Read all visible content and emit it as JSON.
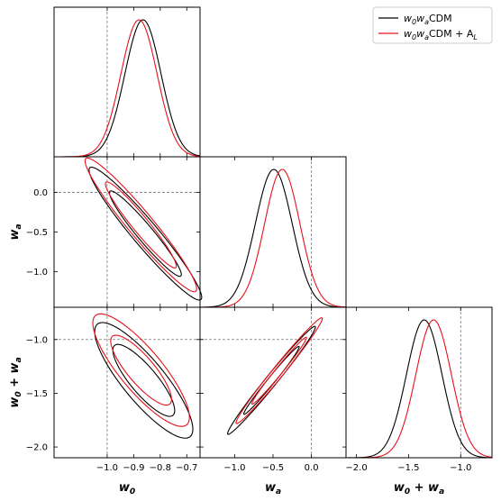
{
  "chart_data": {
    "type": "triangle",
    "parameters": [
      {
        "key": "w0",
        "label_main": "w",
        "label_sub": "0",
        "range": [
          -1.2,
          -0.65
        ],
        "ticks": [
          -1.0,
          -0.9,
          -0.8,
          -0.7
        ],
        "tick_labels": [
          "−1.0",
          "−0.9",
          "−0.8",
          "−0.7"
        ],
        "ref": -1.0
      },
      {
        "key": "wa",
        "label_main": "w",
        "label_sub": "a",
        "range": [
          -1.45,
          0.45
        ],
        "ticks": [
          -1.0,
          -0.5,
          0.0
        ],
        "tick_labels": [
          "−1.0",
          "−0.5",
          "0.0"
        ],
        "ref": 0.0
      },
      {
        "key": "w0wa",
        "label_main": "w",
        "label_sub": "0",
        "label_tail": " + w",
        "label_sub2": "a",
        "range": [
          -2.1,
          -0.7
        ],
        "ticks": [
          -2.0,
          -1.5,
          -1.0
        ],
        "tick_labels": [
          "−2.0",
          "−1.5",
          "−1.0"
        ],
        "ref": -1.0
      }
    ],
    "series": [
      {
        "name": "w0waCDM",
        "legend_main": "w",
        "legend_sub1": "0",
        "legend_mid": "w",
        "legend_sub2": "a",
        "legend_tail": "CDM",
        "color": "#000000",
        "w0": {
          "mean": -0.865,
          "sigma": 0.068
        },
        "wa": {
          "mean": -0.49,
          "sigma": 0.24
        },
        "w0wa": {
          "mean": -1.35,
          "sigma": 0.17
        },
        "contours": {
          "w0_wa": [
            {
              "center": [
                -0.856,
                -0.52
              ],
              "p1": [
                0.134,
                -0.534
              ],
              "p2": [
                0.02,
                0.078
              ]
            },
            {
              "center": [
                -0.856,
                -0.52
              ],
              "p1": [
                0.21,
                -0.83
              ],
              "p2": [
                0.031,
                0.122
              ]
            }
          ],
          "w0_w0wa": [
            {
              "center": [
                -0.862,
                -1.38
              ],
              "p1": [
                0.112,
                -0.32
              ],
              "p2": [
                0.032,
                0.098
              ]
            },
            {
              "center": [
                -0.862,
                -1.38
              ],
              "p1": [
                0.178,
                -0.515
              ],
              "p2": [
                0.05,
                0.155
              ]
            }
          ],
          "wa_w0wa": [
            {
              "center": [
                -0.52,
                -1.38
              ],
              "p1": [
                0.36,
                0.315
              ],
              "p2": [
                -0.025,
                0.03
              ]
            },
            {
              "center": [
                -0.52,
                -1.38
              ],
              "p1": [
                0.57,
                0.5
              ],
              "p2": [
                -0.04,
                0.048
              ]
            }
          ]
        }
      },
      {
        "name": "w0waCDM + AL",
        "legend_main": "w",
        "legend_sub1": "0",
        "legend_mid": "w",
        "legend_sub2": "a",
        "legend_tail": "CDM + A",
        "legend_sub3": "L",
        "color": "#e8111a",
        "w0": {
          "mean": -0.88,
          "sigma": 0.068
        },
        "wa": {
          "mean": -0.38,
          "sigma": 0.23
        },
        "w0wa": {
          "mean": -1.26,
          "sigma": 0.17
        },
        "contours": {
          "w0_wa": [
            {
              "center": [
                -0.873,
                -0.41
              ],
              "p1": [
                0.132,
                -0.537
              ],
              "p2": [
                0.02,
                0.078
              ]
            },
            {
              "center": [
                -0.873,
                -0.41
              ],
              "p1": [
                0.208,
                -0.835
              ],
              "p2": [
                0.031,
                0.122
              ]
            }
          ],
          "w0_w0wa": [
            {
              "center": [
                -0.872,
                -1.285
              ],
              "p1": [
                0.11,
                -0.31
              ],
              "p2": [
                0.032,
                0.098
              ]
            },
            {
              "center": [
                -0.872,
                -1.285
              ],
              "p1": [
                0.175,
                -0.5
              ],
              "p2": [
                0.05,
                0.155
              ]
            }
          ],
          "wa_w0wa": [
            {
              "center": [
                -0.42,
                -1.29
              ],
              "p1": [
                0.355,
                0.31
              ],
              "p2": [
                -0.025,
                0.03
              ]
            },
            {
              "center": [
                -0.42,
                -1.29
              ],
              "p1": [
                0.56,
                0.49
              ],
              "p2": [
                -0.04,
                0.048
              ]
            }
          ]
        }
      }
    ],
    "legend": {
      "position": "top-right"
    },
    "grid": false,
    "reference_lines": true
  }
}
